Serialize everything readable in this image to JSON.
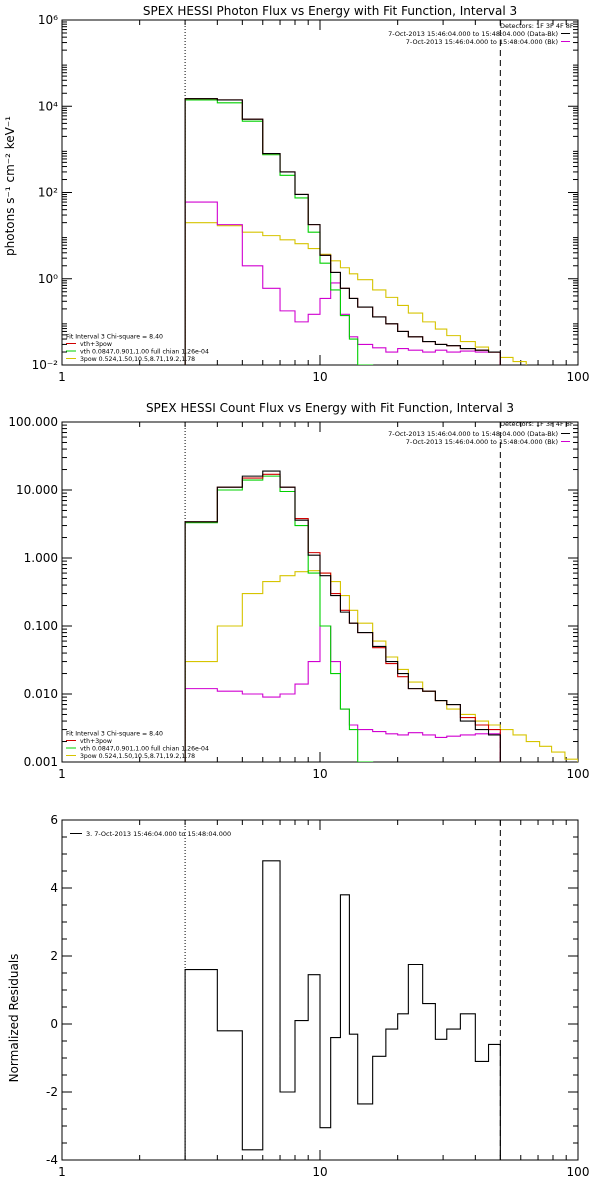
{
  "colors": {
    "black": "#000000",
    "red": "#d00000",
    "green": "#00d000",
    "yellow": "#d6c400",
    "magenta": "#d000d0"
  },
  "annotation_lines": {
    "dotted_x": 3,
    "dashed_x": 50
  },
  "chart_data": [
    {
      "type": "line",
      "title": "SPEX HESSI Photon Flux vs Energy with Fit Function, Interval 3",
      "xlabel": "",
      "ylabel": "photons s⁻¹ cm⁻² keV⁻¹",
      "xscale": "log",
      "yscale": "log",
      "xlim": [
        1,
        100
      ],
      "ylim": [
        0.01,
        1000000
      ],
      "xticks": [
        1,
        10,
        100
      ],
      "xtick_labels": [
        "1",
        "10",
        "100"
      ],
      "yticks": [
        0.01,
        1,
        100,
        10000,
        1000000
      ],
      "ytick_labels": [
        "10⁻²",
        "10⁰",
        "10²",
        "10⁴",
        "10⁶"
      ],
      "detectors_label": "Detectors: 1F 3F 4F 8F",
      "legend_lines": [
        {
          "text": "7-Oct-2013 15:46:04.000 to 15:48:04.000 (Data-Bk)",
          "color": "#000000"
        },
        {
          "text": "7-Oct-2013 15:46:04.000 to 15:48:04.000 (Bk)",
          "color": "#d000d0"
        }
      ],
      "fit_lines": [
        {
          "text": "Fit Interval 3    Chi-square = 8.40",
          "color": "#000000"
        },
        {
          "text": "vth+3pow",
          "color": "#d00000"
        },
        {
          "text": "vth 0.0847,0.901,1.00   full chian 1.26e-04",
          "color": "#00d000"
        },
        {
          "text": "3pow 0.524,1.50,10.5,8.71,19.2,1.78",
          "color": "#d6c400"
        }
      ],
      "series": [
        {
          "color": "#000000",
          "edges": [
            3,
            4,
            5,
            6,
            7,
            8,
            9,
            10,
            11,
            12,
            13,
            14,
            16,
            18,
            20,
            22,
            25,
            28,
            31,
            35,
            40,
            45,
            50
          ],
          "values": [
            15000,
            14000,
            5000,
            800,
            300,
            90,
            18,
            3.5,
            1.4,
            0.6,
            0.35,
            0.22,
            0.13,
            0.09,
            0.06,
            0.045,
            0.035,
            0.03,
            0.028,
            0.024,
            0.022,
            0.02
          ]
        },
        {
          "color": "#d00000",
          "edges": [
            3,
            4,
            5,
            6,
            7,
            8,
            9,
            10,
            11,
            12,
            13,
            14,
            16,
            18,
            20,
            22,
            25,
            28,
            31,
            35,
            40,
            45,
            50
          ],
          "values": [
            15000,
            14000,
            5000,
            800,
            300,
            90,
            18,
            3.5,
            1.4,
            0.6,
            0.35,
            0.22,
            0.13,
            0.09,
            0.06,
            0.045,
            0.035,
            0.03,
            0.028,
            0.024,
            0.022,
            0.02
          ]
        },
        {
          "color": "#00d000",
          "edges": [
            3,
            4,
            5,
            6,
            7,
            8,
            9,
            10,
            11,
            12,
            13,
            14,
            16
          ],
          "values": [
            14000,
            12000,
            4500,
            750,
            250,
            75,
            12,
            2.3,
            0.55,
            0.14,
            0.04,
            0.01
          ]
        },
        {
          "color": "#d6c400",
          "edges": [
            3,
            4,
            5,
            6,
            7,
            8,
            9,
            10,
            11,
            12,
            13,
            14,
            16,
            18,
            20,
            22,
            25,
            28,
            31,
            35,
            40,
            45,
            50,
            56,
            63
          ],
          "values": [
            20,
            17,
            12,
            10,
            8,
            6.5,
            5,
            3.7,
            2.6,
            1.8,
            1.3,
            0.95,
            0.55,
            0.37,
            0.24,
            0.16,
            0.1,
            0.068,
            0.048,
            0.035,
            0.026,
            0.02,
            0.015,
            0.012
          ]
        },
        {
          "color": "#d000d0",
          "edges": [
            3,
            4,
            5,
            6,
            7,
            8,
            9,
            10,
            11,
            12,
            13,
            14,
            16,
            18,
            20,
            22,
            25,
            28,
            31,
            35,
            40,
            45,
            50
          ],
          "values": [
            60,
            18,
            2,
            0.6,
            0.18,
            0.1,
            0.15,
            0.35,
            0.8,
            0.15,
            0.045,
            0.03,
            0.025,
            0.02,
            0.024,
            0.022,
            0.02,
            0.022,
            0.02,
            0.021,
            0.02,
            0.02
          ]
        }
      ]
    },
    {
      "type": "line",
      "title": "SPEX HESSI Count Flux vs Energy with Fit Function, Interval 3",
      "xlabel": "",
      "ylabel": "",
      "xscale": "log",
      "yscale": "log",
      "xlim": [
        1,
        100
      ],
      "ylim": [
        0.001,
        100
      ],
      "xticks": [
        1,
        10,
        100
      ],
      "xtick_labels": [
        "1",
        "10",
        "100"
      ],
      "yticks": [
        0.001,
        0.01,
        0.1,
        1,
        10,
        100
      ],
      "ytick_labels": [
        "0.001",
        "0.010",
        "0.100",
        "1.000",
        "10.000",
        "100.000"
      ],
      "detectors_label": "Detectors: 1F 3F 4F 8F",
      "legend_lines": [
        {
          "text": "7-Oct-2013 15:46:04.000 to 15:48:04.000 (Data-Bk)",
          "color": "#000000"
        },
        {
          "text": "7-Oct-2013 15:46:04.000 to 15:48:04.000 (Bk)",
          "color": "#d000d0"
        }
      ],
      "fit_lines": [
        {
          "text": "Fit Interval 3    Chi-square = 8.40",
          "color": "#000000"
        },
        {
          "text": "vth+3pow",
          "color": "#d00000"
        },
        {
          "text": "vth 0.0847,0.901,1.00   full chian 1.26e-04",
          "color": "#00d000"
        },
        {
          "text": "3pow 0.524,1.50,10.5,8.71,19.2,1.78",
          "color": "#d6c400"
        }
      ],
      "series": [
        {
          "color": "#000000",
          "edges": [
            3,
            4,
            5,
            6,
            7,
            8,
            9,
            10,
            11,
            12,
            13,
            14,
            16,
            18,
            20,
            22,
            25,
            28,
            31,
            35,
            40,
            45,
            50
          ],
          "values": [
            3.4,
            11,
            16,
            19,
            11,
            3.6,
            1.1,
            0.55,
            0.28,
            0.16,
            0.11,
            0.08,
            0.05,
            0.03,
            0.02,
            0.012,
            0.011,
            0.008,
            0.007,
            0.004,
            0.003,
            0.0025
          ]
        },
        {
          "color": "#d00000",
          "edges": [
            3,
            4,
            5,
            6,
            7,
            8,
            9,
            10,
            11,
            12,
            13,
            14,
            16,
            18,
            20,
            22,
            25,
            28,
            31,
            35,
            40,
            45,
            50
          ],
          "values": [
            3.4,
            11,
            15,
            17,
            11,
            3.8,
            1.2,
            0.6,
            0.3,
            0.17,
            0.11,
            0.08,
            0.048,
            0.028,
            0.018,
            0.012,
            0.011,
            0.008,
            0.007,
            0.0045,
            0.0035,
            0.003
          ]
        },
        {
          "color": "#00d000",
          "edges": [
            3,
            4,
            5,
            6,
            7,
            8,
            9,
            10,
            11,
            12,
            13,
            14,
            16
          ],
          "values": [
            3.3,
            10,
            14,
            16,
            9.5,
            3,
            0.6,
            0.1,
            0.02,
            0.006,
            0.003,
            0.001
          ]
        },
        {
          "color": "#d6c400",
          "edges": [
            3,
            4,
            5,
            6,
            7,
            8,
            9,
            10,
            11,
            12,
            13,
            14,
            16,
            18,
            20,
            22,
            25,
            28,
            31,
            35,
            40,
            45,
            50,
            56,
            63,
            71,
            79,
            89,
            100
          ],
          "values": [
            0.03,
            0.1,
            0.3,
            0.45,
            0.55,
            0.63,
            0.65,
            0.6,
            0.45,
            0.28,
            0.17,
            0.11,
            0.06,
            0.035,
            0.023,
            0.015,
            0.011,
            0.008,
            0.006,
            0.005,
            0.004,
            0.0035,
            0.003,
            0.0025,
            0.002,
            0.0017,
            0.0014,
            0.0011
          ]
        },
        {
          "color": "#d000d0",
          "edges": [
            3,
            4,
            5,
            6,
            7,
            8,
            9,
            10,
            11,
            12,
            13,
            14,
            16,
            18,
            20,
            22,
            25,
            28,
            31,
            35,
            40,
            45,
            50
          ],
          "values": [
            0.012,
            0.011,
            0.01,
            0.009,
            0.01,
            0.014,
            0.03,
            0.1,
            0.03,
            0.006,
            0.0035,
            0.003,
            0.0028,
            0.0026,
            0.0025,
            0.0027,
            0.0025,
            0.0023,
            0.0024,
            0.0025,
            0.0026,
            0.0026
          ]
        }
      ]
    },
    {
      "type": "line",
      "title": "",
      "xlabel": "",
      "ylabel": "Normalized Residuals",
      "xscale": "log",
      "yscale": "linear",
      "xlim": [
        1,
        100
      ],
      "ylim": [
        -4,
        6
      ],
      "xticks": [
        1,
        10,
        100
      ],
      "xtick_labels": [
        "1",
        "10",
        "100"
      ],
      "yticks": [
        -4,
        -2,
        0,
        2,
        4,
        6
      ],
      "ytick_labels": [
        "-4",
        "-2",
        "0",
        "2",
        "4",
        "6"
      ],
      "legend_lines": [
        {
          "text": "3.  7-Oct-2013 15:46:04.000 to 15:48:04.000",
          "color": "#000000"
        }
      ],
      "series": [
        {
          "color": "#000000",
          "edges": [
            3,
            4,
            5,
            6,
            7,
            8,
            9,
            10,
            11,
            12,
            13,
            14,
            16,
            18,
            20,
            22,
            25,
            28,
            31,
            35,
            40,
            45,
            50
          ],
          "values": [
            1.6,
            -0.2,
            -3.7,
            4.8,
            -2.0,
            0.1,
            1.45,
            -3.05,
            -0.4,
            3.8,
            -0.3,
            -2.35,
            -0.95,
            -0.15,
            0.3,
            1.75,
            0.6,
            -0.45,
            -0.15,
            0.3,
            -1.1,
            -0.6
          ]
        }
      ]
    }
  ]
}
